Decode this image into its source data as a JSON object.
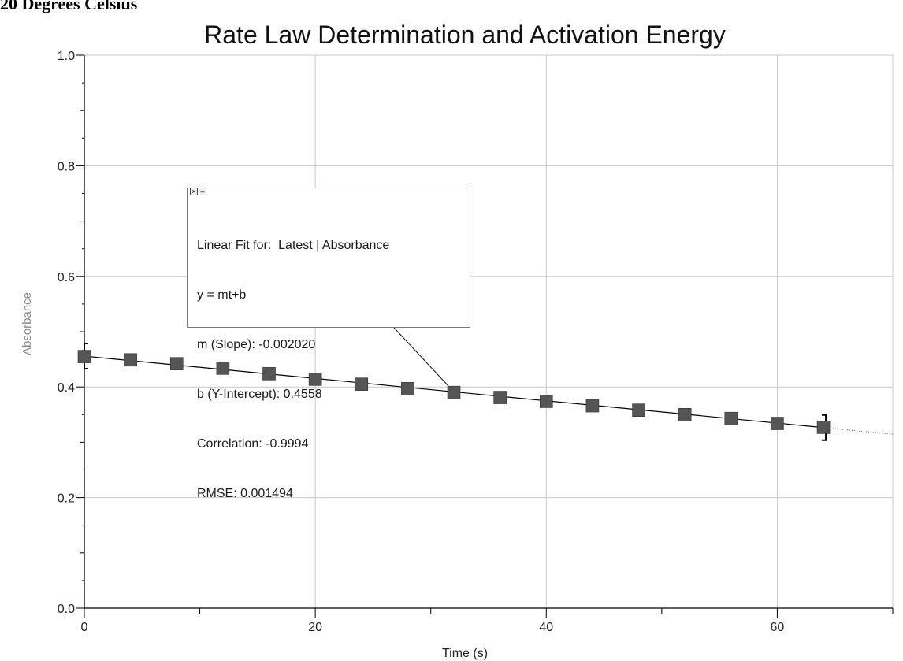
{
  "page": {
    "heading": "20 Degrees Celsius"
  },
  "chart_data": {
    "type": "scatter",
    "title": "Rate Law Determination and Activation Energy",
    "xlabel": "Time (s)",
    "ylabel": "Absorbance",
    "xlim": [
      0,
      70
    ],
    "ylim": [
      0,
      1.0
    ],
    "x_ticks": [
      0,
      20,
      40,
      60
    ],
    "y_ticks": [
      0.0,
      0.2,
      0.4,
      0.6,
      0.8,
      1.0
    ],
    "x_tick_labels": [
      "0",
      "20",
      "40",
      "60"
    ],
    "y_tick_labels": [
      "0.0",
      "0.2",
      "0.4",
      "0.6",
      "0.8",
      "1.0"
    ],
    "grid": true,
    "series": [
      {
        "x": [
          0,
          4,
          8,
          12,
          16,
          20,
          24,
          28,
          32,
          36,
          40,
          44,
          48,
          52,
          56,
          60,
          64
        ],
        "y": [
          0.455,
          0.449,
          0.442,
          0.434,
          0.424,
          0.414,
          0.405,
          0.397,
          0.39,
          0.381,
          0.374,
          0.366,
          0.358,
          0.35,
          0.343,
          0.334,
          0.327
        ]
      }
    ],
    "fit": {
      "slope": -0.00202,
      "intercept": 0.4558,
      "range": [
        0,
        64
      ],
      "lines": [
        "Linear Fit for:  Latest | Absorbance",
        "y = mt+b",
        "m (Slope): -0.002020",
        "b (Y-Intercept): 0.4558",
        "Correlation: -0.9994",
        "RMSE: 0.001494"
      ],
      "close_glyph": "×",
      "minimize_glyph": "–"
    },
    "colors": {
      "marker": "#555555",
      "grid": "#c8c8c8",
      "axis": "#000000",
      "ylabel": "#8a8a8a"
    }
  }
}
